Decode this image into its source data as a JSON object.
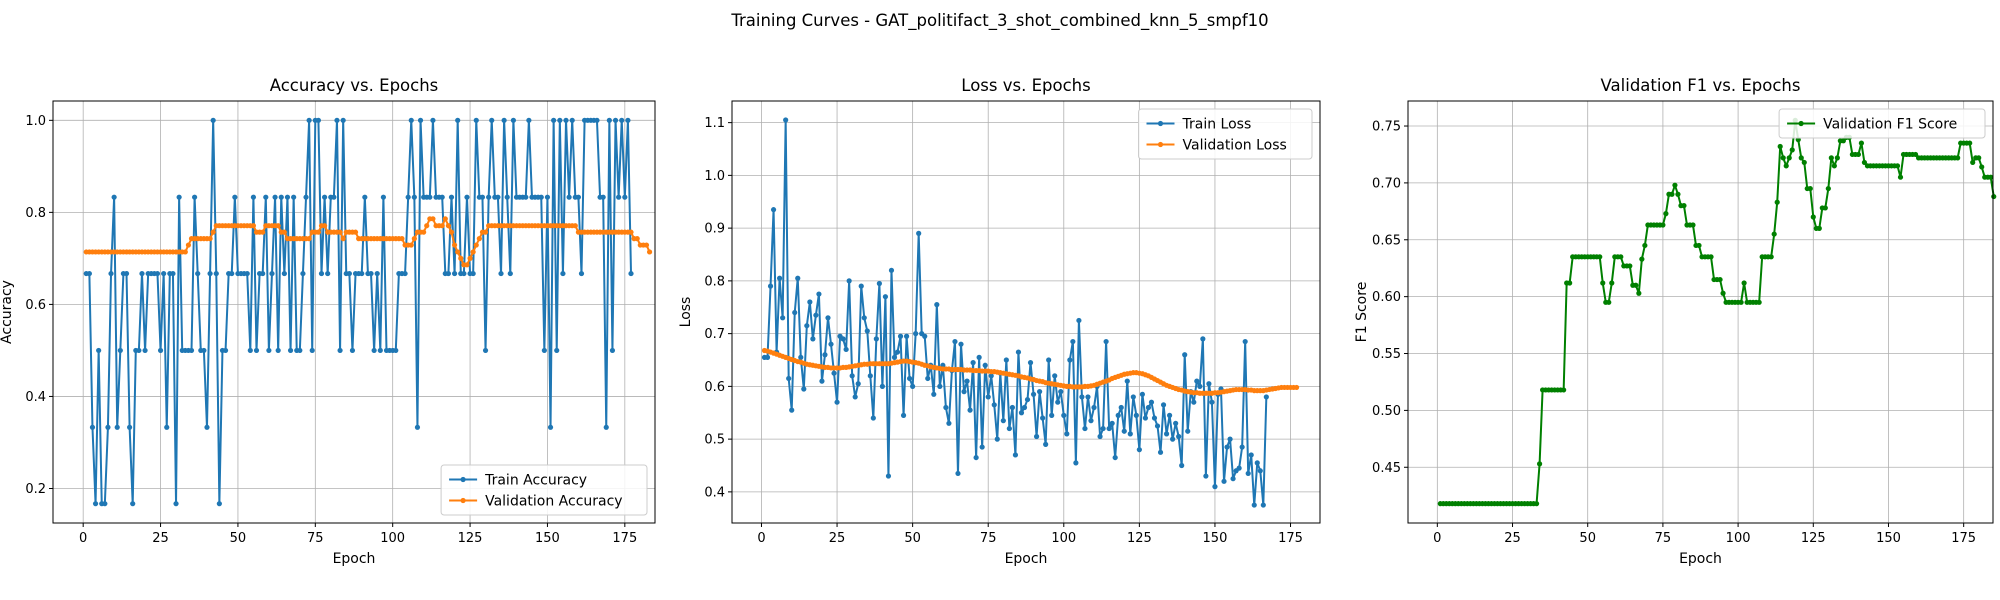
{
  "suptitle": "Training Curves - GAT_politifact_3_shot_combined_knn_5_smpf10",
  "chart_data": [
    {
      "type": "line",
      "title": "Accuracy vs. Epochs",
      "xlabel": "Epoch",
      "ylabel": "Accuracy",
      "xlim": [
        -9.75,
        184.75
      ],
      "ylim": [
        0.125,
        1.042
      ],
      "x_ticks": [
        0,
        25,
        50,
        75,
        100,
        125,
        150,
        175
      ],
      "y_ticks": [
        0.2,
        0.4,
        0.6,
        0.8,
        1.0
      ],
      "y_tick_labels": [
        "0.2",
        "0.4",
        "0.6",
        "0.8",
        "1.0"
      ],
      "grid": true,
      "legend_loc": "lower right",
      "series": [
        {
          "name": "Train Accuracy",
          "color": "#1f77b4",
          "x_start": 1,
          "values": [
            0.667,
            0.667,
            0.333,
            0.167,
            0.5,
            0.167,
            0.167,
            0.333,
            0.667,
            0.833,
            0.333,
            0.5,
            0.667,
            0.667,
            0.333,
            0.167,
            0.5,
            0.5,
            0.667,
            0.5,
            0.667,
            0.667,
            0.667,
            0.667,
            0.5,
            0.667,
            0.333,
            0.667,
            0.667,
            0.167,
            0.833,
            0.5,
            0.5,
            0.5,
            0.5,
            0.833,
            0.667,
            0.5,
            0.5,
            0.333,
            0.667,
            1.0,
            0.667,
            0.167,
            0.5,
            0.5,
            0.667,
            0.667,
            0.833,
            0.667,
            0.667,
            0.667,
            0.667,
            0.5,
            0.833,
            0.5,
            0.667,
            0.667,
            0.833,
            0.5,
            0.667,
            0.833,
            0.5,
            0.833,
            0.667,
            0.833,
            0.5,
            0.833,
            0.5,
            0.5,
            0.667,
            0.833,
            1.0,
            0.5,
            1.0,
            1.0,
            0.667,
            0.833,
            0.667,
            0.833,
            0.833,
            1.0,
            0.5,
            1.0,
            0.667,
            0.667,
            0.5,
            0.667,
            0.667,
            0.667,
            0.833,
            0.667,
            0.667,
            0.5,
            0.667,
            0.5,
            0.833,
            0.5,
            0.5,
            0.5,
            0.5,
            0.667,
            0.667,
            0.667,
            0.833,
            1.0,
            0.833,
            0.333,
            1.0,
            0.833,
            0.833,
            0.833,
            1.0,
            0.833,
            0.833,
            0.833,
            0.667,
            0.667,
            0.833,
            0.667,
            1.0,
            0.667,
            0.667,
            0.833,
            0.667,
            0.667,
            1.0,
            0.833,
            0.833,
            0.5,
            0.833,
            1.0,
            0.833,
            0.833,
            0.667,
            1.0,
            0.833,
            0.667,
            1.0,
            0.833,
            0.833,
            0.833,
            0.833,
            1.0,
            0.833,
            0.833,
            0.833,
            0.833,
            0.5,
            0.833,
            0.333,
            1.0,
            0.5,
            1.0,
            0.667,
            1.0,
            0.833,
            1.0,
            0.833,
            0.833,
            0.667,
            1.0,
            1.0,
            1.0,
            1.0,
            1.0,
            0.833,
            0.833,
            0.333,
            1.0,
            0.5,
            1.0,
            0.833,
            1.0,
            0.833,
            1.0,
            0.667
          ]
        },
        {
          "name": "Validation Accuracy",
          "color": "#ff7f0e",
          "x_start": 1,
          "values": [
            0.714,
            0.714,
            0.714,
            0.714,
            0.714,
            0.714,
            0.714,
            0.714,
            0.714,
            0.714,
            0.714,
            0.714,
            0.714,
            0.714,
            0.714,
            0.714,
            0.714,
            0.714,
            0.714,
            0.714,
            0.714,
            0.714,
            0.714,
            0.714,
            0.714,
            0.714,
            0.714,
            0.714,
            0.714,
            0.714,
            0.714,
            0.714,
            0.714,
            0.729,
            0.743,
            0.743,
            0.743,
            0.743,
            0.743,
            0.743,
            0.743,
            0.757,
            0.771,
            0.771,
            0.771,
            0.771,
            0.771,
            0.771,
            0.771,
            0.771,
            0.771,
            0.771,
            0.771,
            0.771,
            0.771,
            0.757,
            0.757,
            0.757,
            0.771,
            0.771,
            0.771,
            0.771,
            0.771,
            0.757,
            0.757,
            0.743,
            0.743,
            0.743,
            0.743,
            0.743,
            0.743,
            0.743,
            0.743,
            0.757,
            0.757,
            0.757,
            0.771,
            0.771,
            0.757,
            0.757,
            0.757,
            0.757,
            0.757,
            0.743,
            0.757,
            0.757,
            0.757,
            0.757,
            0.743,
            0.743,
            0.743,
            0.743,
            0.743,
            0.743,
            0.743,
            0.743,
            0.743,
            0.743,
            0.743,
            0.743,
            0.743,
            0.743,
            0.743,
            0.729,
            0.729,
            0.729,
            0.743,
            0.757,
            0.757,
            0.757,
            0.771,
            0.786,
            0.786,
            0.771,
            0.771,
            0.771,
            0.786,
            0.771,
            0.757,
            0.729,
            0.714,
            0.7,
            0.686,
            0.686,
            0.7,
            0.714,
            0.729,
            0.743,
            0.757,
            0.757,
            0.771,
            0.771,
            0.771,
            0.771,
            0.771,
            0.771,
            0.771,
            0.771,
            0.771,
            0.771,
            0.771,
            0.771,
            0.771,
            0.771,
            0.771,
            0.771,
            0.771,
            0.771,
            0.771,
            0.771,
            0.771,
            0.771,
            0.771,
            0.771,
            0.771,
            0.771,
            0.771,
            0.771,
            0.771,
            0.757,
            0.757,
            0.757,
            0.757,
            0.757,
            0.757,
            0.757,
            0.757,
            0.757,
            0.757,
            0.757,
            0.757,
            0.757,
            0.757,
            0.757,
            0.757,
            0.757,
            0.757,
            0.743,
            0.743,
            0.729,
            0.729,
            0.729,
            0.714
          ]
        }
      ]
    },
    {
      "type": "line",
      "title": "Loss vs. Epochs",
      "xlabel": "Epoch",
      "ylabel": "Loss",
      "xlim": [
        -9.75,
        184.75
      ],
      "ylim": [
        0.341,
        1.141
      ],
      "x_ticks": [
        0,
        25,
        50,
        75,
        100,
        125,
        150,
        175
      ],
      "y_ticks": [
        0.4,
        0.5,
        0.6,
        0.7,
        0.8,
        0.9,
        1.0,
        1.1
      ],
      "y_tick_labels": [
        "0.4",
        "0.5",
        "0.6",
        "0.7",
        "0.8",
        "0.9",
        "1.0",
        "1.1"
      ],
      "grid": true,
      "legend_loc": "upper right",
      "series": [
        {
          "name": "Train Loss",
          "color": "#1f77b4",
          "x_start": 1,
          "values": [
            0.655,
            0.655,
            0.79,
            0.935,
            0.665,
            0.805,
            0.73,
            1.105,
            0.615,
            0.555,
            0.74,
            0.805,
            0.655,
            0.595,
            0.715,
            0.76,
            0.69,
            0.735,
            0.775,
            0.61,
            0.66,
            0.73,
            0.68,
            0.625,
            0.57,
            0.695,
            0.69,
            0.67,
            0.8,
            0.62,
            0.58,
            0.605,
            0.79,
            0.73,
            0.705,
            0.62,
            0.54,
            0.69,
            0.795,
            0.6,
            0.77,
            0.43,
            0.82,
            0.655,
            0.665,
            0.695,
            0.545,
            0.695,
            0.615,
            0.6,
            0.7,
            0.89,
            0.7,
            0.695,
            0.615,
            0.64,
            0.585,
            0.755,
            0.6,
            0.64,
            0.56,
            0.53,
            0.63,
            0.685,
            0.435,
            0.68,
            0.59,
            0.61,
            0.555,
            0.645,
            0.465,
            0.655,
            0.485,
            0.64,
            0.58,
            0.62,
            0.565,
            0.5,
            0.625,
            0.535,
            0.65,
            0.52,
            0.56,
            0.47,
            0.665,
            0.55,
            0.56,
            0.575,
            0.645,
            0.585,
            0.505,
            0.59,
            0.54,
            0.49,
            0.65,
            0.545,
            0.62,
            0.57,
            0.59,
            0.545,
            0.51,
            0.65,
            0.685,
            0.455,
            0.725,
            0.58,
            0.52,
            0.58,
            0.535,
            0.56,
            0.6,
            0.505,
            0.52,
            0.685,
            0.52,
            0.53,
            0.465,
            0.545,
            0.56,
            0.515,
            0.61,
            0.51,
            0.58,
            0.545,
            0.48,
            0.585,
            0.54,
            0.56,
            0.57,
            0.54,
            0.525,
            0.475,
            0.565,
            0.51,
            0.545,
            0.5,
            0.53,
            0.505,
            0.45,
            0.66,
            0.515,
            0.59,
            0.57,
            0.61,
            0.6,
            0.69,
            0.43,
            0.605,
            0.57,
            0.41,
            0.585,
            0.595,
            0.42,
            0.485,
            0.5,
            0.425,
            0.44,
            0.445,
            0.485,
            0.685,
            0.435,
            0.47,
            0.375,
            0.455,
            0.44,
            0.375,
            0.58
          ]
        },
        {
          "name": "Validation Loss",
          "color": "#ff7f0e",
          "x_start": 1,
          "values": [
            0.668,
            0.667,
            0.665,
            0.663,
            0.661,
            0.659,
            0.657,
            0.655,
            0.653,
            0.651,
            0.649,
            0.647,
            0.646,
            0.644,
            0.642,
            0.641,
            0.64,
            0.639,
            0.638,
            0.637,
            0.636,
            0.636,
            0.635,
            0.635,
            0.635,
            0.635,
            0.636,
            0.636,
            0.637,
            0.638,
            0.639,
            0.64,
            0.641,
            0.642,
            0.642,
            0.643,
            0.643,
            0.643,
            0.643,
            0.643,
            0.643,
            0.643,
            0.644,
            0.645,
            0.646,
            0.647,
            0.648,
            0.648,
            0.647,
            0.646,
            0.645,
            0.644,
            0.642,
            0.64,
            0.639,
            0.637,
            0.636,
            0.635,
            0.634,
            0.633,
            0.633,
            0.633,
            0.632,
            0.632,
            0.632,
            0.632,
            0.631,
            0.631,
            0.631,
            0.63,
            0.63,
            0.63,
            0.629,
            0.629,
            0.629,
            0.628,
            0.628,
            0.627,
            0.626,
            0.625,
            0.624,
            0.623,
            0.622,
            0.621,
            0.62,
            0.618,
            0.617,
            0.616,
            0.614,
            0.613,
            0.611,
            0.61,
            0.609,
            0.607,
            0.606,
            0.605,
            0.604,
            0.603,
            0.602,
            0.601,
            0.6,
            0.6,
            0.599,
            0.599,
            0.599,
            0.599,
            0.6,
            0.6,
            0.601,
            0.602,
            0.604,
            0.606,
            0.608,
            0.61,
            0.612,
            0.615,
            0.617,
            0.619,
            0.621,
            0.623,
            0.624,
            0.625,
            0.626,
            0.626,
            0.625,
            0.624,
            0.622,
            0.62,
            0.617,
            0.614,
            0.611,
            0.608,
            0.605,
            0.602,
            0.6,
            0.598,
            0.596,
            0.594,
            0.593,
            0.591,
            0.59,
            0.589,
            0.588,
            0.588,
            0.587,
            0.587,
            0.587,
            0.587,
            0.587,
            0.588,
            0.588,
            0.589,
            0.59,
            0.591,
            0.592,
            0.593,
            0.594,
            0.594,
            0.594,
            0.594,
            0.593,
            0.593,
            0.592,
            0.592,
            0.592,
            0.592,
            0.593,
            0.594,
            0.595,
            0.596,
            0.597,
            0.598,
            0.598,
            0.598,
            0.598,
            0.598,
            0.598
          ]
        }
      ]
    },
    {
      "type": "line",
      "title": "Validation F1 vs. Epochs",
      "xlabel": "Epoch",
      "ylabel": "F1 Score",
      "xlim": [
        -9.75,
        184.75
      ],
      "ylim": [
        0.401,
        0.772
      ],
      "x_ticks": [
        0,
        25,
        50,
        75,
        100,
        125,
        150,
        175
      ],
      "y_ticks": [
        0.45,
        0.5,
        0.55,
        0.6,
        0.65,
        0.7,
        0.75
      ],
      "y_tick_labels": [
        "0.45",
        "0.50",
        "0.55",
        "0.60",
        "0.65",
        "0.70",
        "0.75"
      ],
      "grid": true,
      "legend_loc": "upper right",
      "series": [
        {
          "name": "Validation F1 Score",
          "color": "#008000",
          "x_start": 1,
          "values": [
            0.418,
            0.418,
            0.418,
            0.418,
            0.418,
            0.418,
            0.418,
            0.418,
            0.418,
            0.418,
            0.418,
            0.418,
            0.418,
            0.418,
            0.418,
            0.418,
            0.418,
            0.418,
            0.418,
            0.418,
            0.418,
            0.418,
            0.418,
            0.418,
            0.418,
            0.418,
            0.418,
            0.418,
            0.418,
            0.418,
            0.418,
            0.418,
            0.418,
            0.453,
            0.518,
            0.518,
            0.518,
            0.518,
            0.518,
            0.518,
            0.518,
            0.518,
            0.612,
            0.612,
            0.635,
            0.635,
            0.635,
            0.635,
            0.635,
            0.635,
            0.635,
            0.635,
            0.635,
            0.635,
            0.612,
            0.595,
            0.595,
            0.612,
            0.635,
            0.635,
            0.635,
            0.627,
            0.627,
            0.627,
            0.61,
            0.61,
            0.603,
            0.633,
            0.645,
            0.663,
            0.663,
            0.663,
            0.663,
            0.663,
            0.663,
            0.673,
            0.69,
            0.69,
            0.698,
            0.69,
            0.68,
            0.68,
            0.663,
            0.663,
            0.663,
            0.645,
            0.645,
            0.635,
            0.635,
            0.635,
            0.635,
            0.615,
            0.615,
            0.615,
            0.603,
            0.595,
            0.595,
            0.595,
            0.595,
            0.595,
            0.595,
            0.612,
            0.595,
            0.595,
            0.595,
            0.595,
            0.595,
            0.635,
            0.635,
            0.635,
            0.635,
            0.655,
            0.683,
            0.732,
            0.722,
            0.715,
            0.722,
            0.729,
            0.755,
            0.738,
            0.722,
            0.718,
            0.695,
            0.695,
            0.67,
            0.66,
            0.66,
            0.678,
            0.678,
            0.695,
            0.722,
            0.715,
            0.722,
            0.737,
            0.737,
            0.74,
            0.74,
            0.725,
            0.725,
            0.725,
            0.735,
            0.718,
            0.715,
            0.715,
            0.715,
            0.715,
            0.715,
            0.715,
            0.715,
            0.715,
            0.715,
            0.715,
            0.715,
            0.705,
            0.725,
            0.725,
            0.725,
            0.725,
            0.725,
            0.722,
            0.722,
            0.722,
            0.722,
            0.722,
            0.722,
            0.722,
            0.722,
            0.722,
            0.722,
            0.722,
            0.722,
            0.722,
            0.722,
            0.735,
            0.735,
            0.735,
            0.735,
            0.718,
            0.722,
            0.722,
            0.714,
            0.705,
            0.705,
            0.705,
            0.688
          ]
        }
      ]
    }
  ]
}
